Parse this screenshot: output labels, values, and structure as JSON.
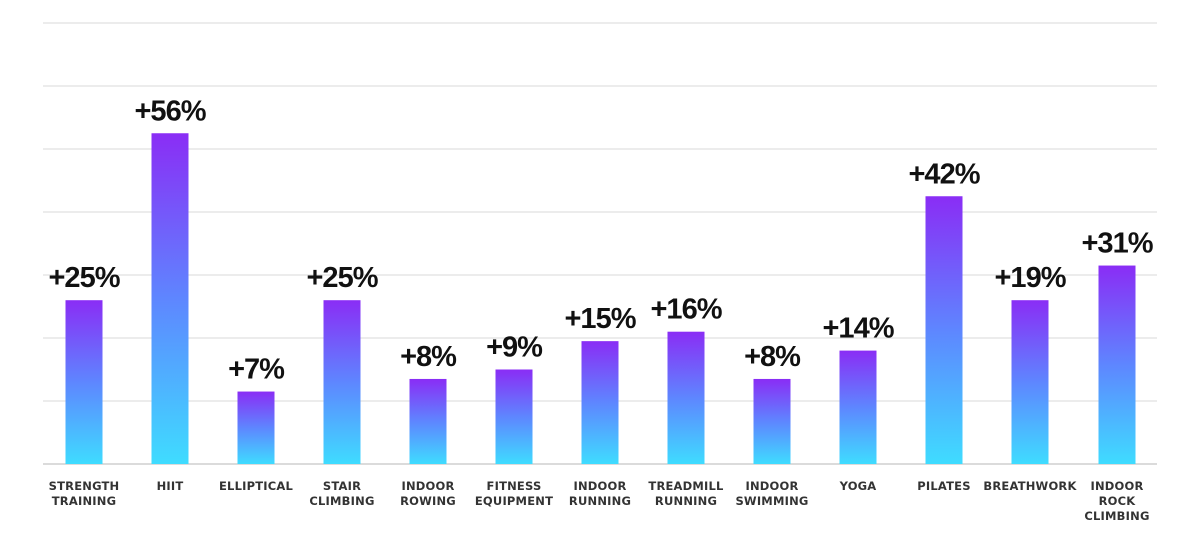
{
  "chart_data": {
    "type": "bar",
    "title": "",
    "xlabel": "",
    "ylabel": "",
    "grid": true,
    "ylim": [
      0,
      70
    ],
    "colors": {
      "bar_top": "#8a2df5",
      "bar_bottom": "#3fdcff",
      "grid": "#d9d9d9",
      "label": "#111111",
      "category": "#333333"
    },
    "categories": [
      [
        "STRENGTH",
        "TRAINING"
      ],
      [
        "HIIT"
      ],
      [
        "ELLIPTICAL"
      ],
      [
        "STAIR",
        "CLIMBING"
      ],
      [
        "INDOOR",
        "ROWING"
      ],
      [
        "FITNESS",
        "EQUIPMENT"
      ],
      [
        "INDOOR",
        "RUNNING"
      ],
      [
        "TREADMILL",
        "RUNNING"
      ],
      [
        "INDOOR",
        "SWIMMING"
      ],
      [
        "YOGA"
      ],
      [
        "PILATES"
      ],
      [
        "BREATHWORK"
      ],
      [
        "INDOOR",
        "ROCK",
        "CLIMBING"
      ]
    ],
    "values": [
      25,
      56,
      7,
      25,
      8,
      9,
      15,
      16,
      8,
      14,
      42,
      19,
      31
    ],
    "bar_display_values": [
      26,
      52.5,
      11.5,
      26,
      13.5,
      15,
      19.5,
      21,
      13.5,
      18,
      42.5,
      26,
      31.5
    ],
    "data_labels": [
      "+25%",
      "+56%",
      "+7%",
      "+25%",
      "+8%",
      "+9%",
      "+15%",
      "+16%",
      "+8%",
      "+14%",
      "+42%",
      "+19%",
      "+31%"
    ]
  }
}
